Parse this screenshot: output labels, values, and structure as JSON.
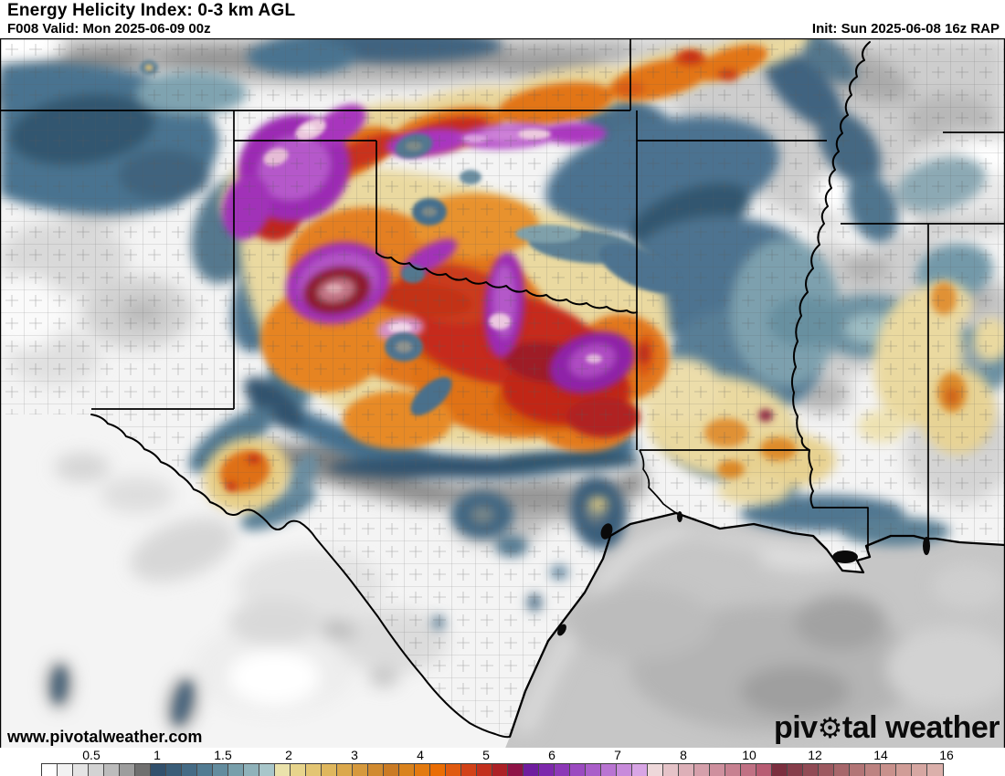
{
  "header": {
    "title": "Energy Helicity Index: 0-3 km AGL",
    "valid": "F008 Valid: Mon 2025-06-09 00z",
    "init": "Init: Sun 2025-06-08 16z RAP"
  },
  "watermark": "www.pivotalweather.com",
  "logo": {
    "pre": "piv",
    "gear_icon": "⚙",
    "post": "tal weather"
  },
  "colorbar": {
    "ticks": [
      "0.5",
      "1",
      "1.5",
      "2",
      "3",
      "4",
      "5",
      "6",
      "7",
      "8",
      "10",
      "12",
      "14",
      "16"
    ],
    "cells": [
      "#ffffff",
      "#f2f2f2",
      "#e4e4e4",
      "#d3d3d3",
      "#bcbcbc",
      "#9d9d9d",
      "#6f6f6f",
      "#32506c",
      "#3a5d78",
      "#456b85",
      "#527b92",
      "#638c9e",
      "#789fab",
      "#8fb2ba",
      "#a8c6ca",
      "#eae2ab",
      "#e7d48c",
      "#e3c573",
      "#dfb75e",
      "#dba84c",
      "#d6993d",
      "#d08a30",
      "#ca7b25",
      "#d9821d",
      "#e37a10",
      "#ea6d04",
      "#e05a10",
      "#d24218",
      "#c2301d",
      "#ac2126",
      "#8e1246",
      "#6f1d9e",
      "#7d28ac",
      "#8c38b7",
      "#9b4ac0",
      "#aa5ec9",
      "#b974d2",
      "#c88bdb",
      "#d8a5e5",
      "#eed8da",
      "#e5c3c8",
      "#ddb0b8",
      "#d5a0ab",
      "#ce909e",
      "#c78191",
      "#c07184",
      "#b85c73",
      "#7b2f3f",
      "#863d4a",
      "#914b55",
      "#9c5960",
      "#a7676b",
      "#b27576",
      "#bd8381",
      "#c8918c",
      "#d09d97",
      "#d6a7a2",
      "#dbb0ab"
    ],
    "colors_legend": {
      "low_gray": "#9d9d9d",
      "blue": "#4a7390",
      "tan": "#ead9a0",
      "orange": "#e2771c",
      "red": "#c62a1b",
      "purple": "#9c2cb4",
      "pale_pink": "#eed8da",
      "mauve": "#a7676b"
    }
  },
  "map_style": {
    "state_border": "#000000",
    "county_line": "#5a5a5a",
    "water_outline": "#000000",
    "gulf_fill": "#c6c6c6",
    "land_base": "#f4f4f4"
  }
}
